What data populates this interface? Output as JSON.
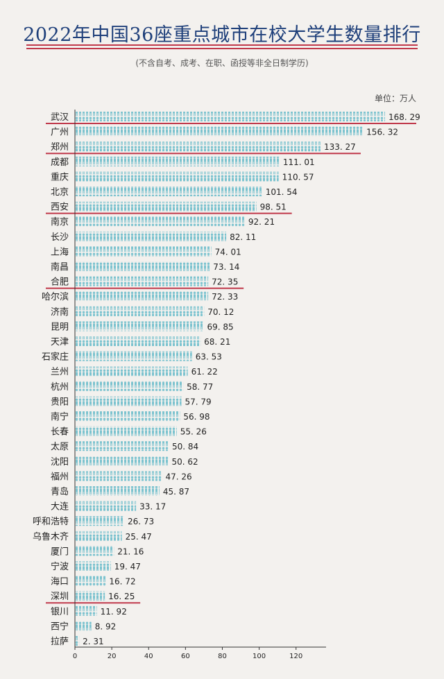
{
  "page": {
    "title": "2022年中国36座重点城市在校大学生数量排行",
    "subtitle": "(不含自考、成考、在职、函授等非全日制学历)",
    "unit": "单位：万人"
  },
  "colors": {
    "title": "#1e3f7a",
    "bar": "#7cc3cf",
    "highlight": "#c0384a",
    "text": "#222222",
    "background": "#f3f1ee"
  },
  "chart_data": {
    "type": "bar",
    "orientation": "horizontal",
    "categories": [
      "武汉",
      "广州",
      "郑州",
      "成都",
      "重庆",
      "北京",
      "西安",
      "南京",
      "长沙",
      "上海",
      "南昌",
      "合肥",
      "哈尔滨",
      "济南",
      "昆明",
      "天津",
      "石家庄",
      "兰州",
      "杭州",
      "贵阳",
      "南宁",
      "长春",
      "太原",
      "沈阳",
      "福州",
      "青岛",
      "大连",
      "呼和浩特",
      "乌鲁木齐",
      "厦门",
      "宁波",
      "海口",
      "深圳",
      "银川",
      "西宁",
      "拉萨"
    ],
    "values": [
      168.29,
      156.32,
      133.27,
      111.01,
      110.57,
      101.54,
      98.51,
      92.21,
      82.11,
      74.01,
      73.14,
      72.35,
      72.33,
      70.12,
      69.85,
      68.21,
      63.53,
      61.22,
      58.77,
      57.79,
      56.98,
      55.26,
      50.84,
      50.62,
      47.26,
      45.87,
      33.17,
      26.73,
      25.47,
      21.16,
      19.47,
      16.72,
      16.25,
      11.92,
      8.92,
      2.31
    ],
    "value_labels": [
      "168. 29",
      "156. 32",
      "133. 27",
      "111. 01",
      "110. 57",
      "101. 54",
      "98. 51",
      "92. 21",
      "82. 11",
      "74. 01",
      "73. 14",
      "72. 35",
      "72. 33",
      "70. 12",
      "69. 85",
      "68. 21",
      "63. 53",
      "61. 22",
      "58. 77",
      "57. 79",
      "56. 98",
      "55. 26",
      "50. 84",
      "50. 62",
      "47. 26",
      "45. 87",
      "33. 17",
      "26. 73",
      "25. 47",
      "21. 16",
      "19. 47",
      "16. 72",
      "16. 25",
      "11. 92",
      "8. 92",
      "2. 31"
    ],
    "highlighted": [
      "武汉",
      "郑州",
      "西安",
      "合肥",
      "深圳"
    ],
    "x_ticks": [
      0,
      20,
      40,
      60,
      80,
      100,
      120
    ],
    "xlim": [
      0,
      175
    ],
    "grid": false,
    "bar_style": "person-pictogram"
  }
}
